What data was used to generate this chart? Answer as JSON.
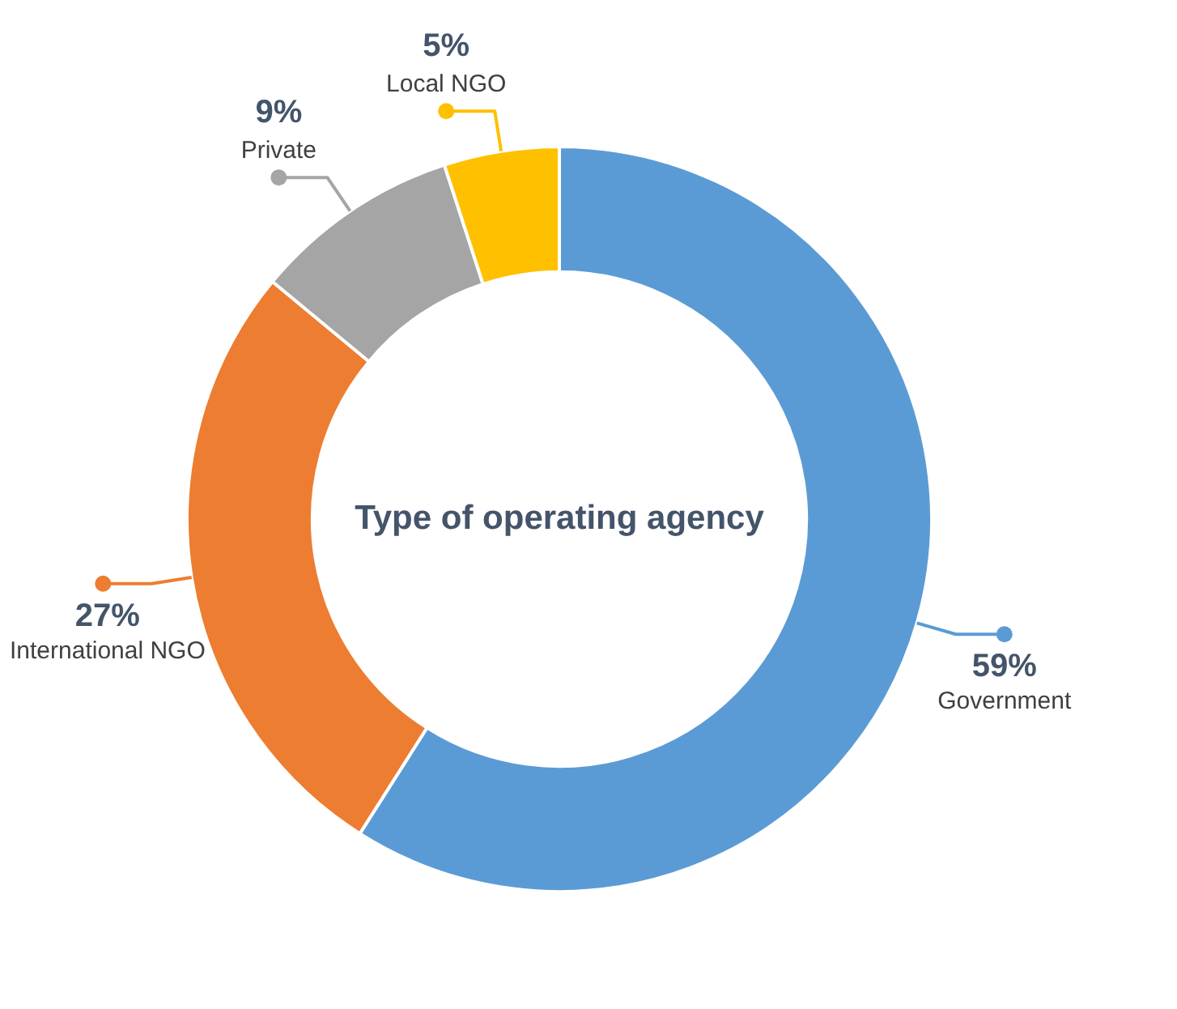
{
  "chart_data": {
    "type": "donut",
    "title": "Type of operating agency",
    "categories": [
      "Government",
      "International NGO",
      "Private",
      "Local NGO"
    ],
    "values": [
      59,
      27,
      9,
      5
    ],
    "colors": [
      "#5b9bd5",
      "#ed7d31",
      "#a5a5a5",
      "#ffc000"
    ],
    "value_labels": [
      "59%",
      "27%",
      "9%",
      "5%"
    ]
  }
}
